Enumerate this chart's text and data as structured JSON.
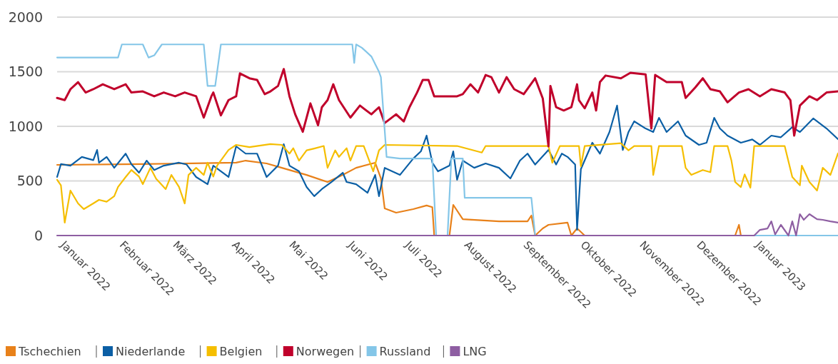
{
  "chart_data": {
    "type": "line",
    "ylim": [
      0,
      2000
    ],
    "yticks": [
      0,
      500,
      1000,
      1500,
      2000
    ],
    "grid": "y",
    "legend": "bottom",
    "xlim": [
      "2022-01-01",
      "2023-02-15"
    ],
    "xticks": [
      {
        "value": "2022-01-01",
        "label": "Januar 2022"
      },
      {
        "value": "2022-02-01",
        "label": "Februar 2022"
      },
      {
        "value": "2022-03-01",
        "label": "März 2022"
      },
      {
        "value": "2022-04-01",
        "label": "April 2022"
      },
      {
        "value": "2022-05-01",
        "label": "Mai 2022"
      },
      {
        "value": "2022-06-01",
        "label": "Juni 2022"
      },
      {
        "value": "2022-07-01",
        "label": "Juli 2022"
      },
      {
        "value": "2022-08-01",
        "label": "August 2022"
      },
      {
        "value": "2022-09-01",
        "label": "September 2022"
      },
      {
        "value": "2022-10-01",
        "label": "Oktober 2022"
      },
      {
        "value": "2022-11-01",
        "label": "November 2022"
      },
      {
        "value": "2022-12-01",
        "label": "Dezember 2022"
      },
      {
        "value": "2023-01-01",
        "label": "Januar 2023"
      }
    ],
    "series": [
      {
        "name": "Tschechien",
        "color": "#e8811a",
        "x": [
          "2022-01-01",
          "2022-02-15",
          "2022-04-05",
          "2022-04-10",
          "2022-04-21",
          "2022-04-29",
          "2022-05-12",
          "2022-05-23",
          "2022-05-31",
          "2022-06-07",
          "2022-06-17",
          "2022-06-20",
          "2022-06-22",
          "2022-06-28",
          "2022-07-07",
          "2022-07-14",
          "2022-07-17",
          "2022-07-18",
          "2022-07-26",
          "2022-07-28",
          "2022-08-02",
          "2022-08-21",
          "2022-09-05",
          "2022-09-07",
          "2022-09-09",
          "2022-09-13",
          "2022-09-16",
          "2022-09-26",
          "2022-09-28",
          "2022-10-01",
          "2022-10-05",
          "2022-12-23",
          "2022-12-25",
          "2022-12-26",
          "2023-02-15"
        ],
        "values": [
          647,
          655,
          667,
          686,
          660,
          620,
          555,
          490,
          555,
          620,
          667,
          523,
          248,
          209,
          242,
          275,
          260,
          0,
          0,
          281,
          150,
          130,
          130,
          183,
          0,
          65,
          98,
          118,
          0,
          65,
          0,
          0,
          98,
          0,
          0
        ]
      },
      {
        "name": "Niederlande",
        "color": "#0b5fa5",
        "x": [
          "2022-01-01",
          "2022-01-03",
          "2022-01-08",
          "2022-01-14",
          "2022-01-20",
          "2022-01-22",
          "2022-01-23",
          "2022-01-27",
          "2022-01-31",
          "2022-02-06",
          "2022-02-09",
          "2022-02-13",
          "2022-02-17",
          "2022-02-21",
          "2022-02-26",
          "2022-03-06",
          "2022-03-10",
          "2022-03-15",
          "2022-03-21",
          "2022-03-24",
          "2022-04-01",
          "2022-04-05",
          "2022-04-10",
          "2022-04-16",
          "2022-04-21",
          "2022-04-27",
          "2022-04-30",
          "2022-05-03",
          "2022-05-08",
          "2022-05-12",
          "2022-05-16",
          "2022-05-20",
          "2022-05-25",
          "2022-05-31",
          "2022-06-02",
          "2022-06-07",
          "2022-06-13",
          "2022-06-17",
          "2022-06-19",
          "2022-06-22",
          "2022-06-30",
          "2022-07-07",
          "2022-07-11",
          "2022-07-14",
          "2022-07-17",
          "2022-07-20",
          "2022-07-26",
          "2022-07-28",
          "2022-07-30",
          "2022-08-02",
          "2022-08-08",
          "2022-08-14",
          "2022-08-21",
          "2022-08-27",
          "2022-09-01",
          "2022-09-05",
          "2022-09-09",
          "2022-09-16",
          "2022-09-20",
          "2022-09-23",
          "2022-09-26",
          "2022-09-30",
          "2022-10-01",
          "2022-10-03",
          "2022-10-09",
          "2022-10-13",
          "2022-10-18",
          "2022-10-22",
          "2022-10-25",
          "2022-10-28",
          "2022-10-31",
          "2022-11-06",
          "2022-11-10",
          "2022-11-13",
          "2022-11-17",
          "2022-11-23",
          "2022-11-27",
          "2022-12-04",
          "2022-12-08",
          "2022-12-12",
          "2022-12-15",
          "2022-12-19",
          "2022-12-26",
          "2023-01-01",
          "2023-01-05",
          "2023-01-11",
          "2023-01-16",
          "2023-01-22",
          "2023-01-26",
          "2023-02-02",
          "2023-02-09",
          "2023-02-15"
        ],
        "values": [
          536,
          654,
          640,
          720,
          690,
          784,
          667,
          720,
          620,
          750,
          654,
          575,
          686,
          600,
          640,
          667,
          650,
          536,
          470,
          640,
          536,
          817,
          750,
          750,
          536,
          640,
          837,
          640,
          588,
          444,
          360,
          425,
          490,
          575,
          490,
          470,
          392,
          555,
          360,
          620,
          555,
          705,
          771,
          915,
          667,
          588,
          640,
          771,
          510,
          686,
          620,
          660,
          620,
          523,
          686,
          750,
          650,
          784,
          650,
          750,
          720,
          650,
          52,
          608,
          850,
          750,
          948,
          1190,
          784,
          948,
          1046,
          980,
          948,
          1078,
          948,
          1046,
          915,
          830,
          850,
          1078,
          980,
          915,
          850,
          880,
          830,
          915,
          900,
          993,
          948,
          1072,
          980,
          882
        ]
      },
      {
        "name": "Belgien",
        "color": "#f5be00",
        "x": [
          "2022-01-01",
          "2022-01-03",
          "2022-01-05",
          "2022-01-08",
          "2022-01-12",
          "2022-01-15",
          "2022-01-20",
          "2022-01-23",
          "2022-01-27",
          "2022-01-31",
          "2022-02-02",
          "2022-02-06",
          "2022-02-09",
          "2022-02-13",
          "2022-02-15",
          "2022-02-19",
          "2022-02-22",
          "2022-02-27",
          "2022-03-02",
          "2022-03-06",
          "2022-03-09",
          "2022-03-11",
          "2022-03-15",
          "2022-03-19",
          "2022-03-21",
          "2022-03-24",
          "2022-03-26",
          "2022-04-01",
          "2022-04-05",
          "2022-04-12",
          "2022-04-23",
          "2022-04-29",
          "2022-05-03",
          "2022-05-05",
          "2022-05-08",
          "2022-05-12",
          "2022-05-16",
          "2022-05-21",
          "2022-05-23",
          "2022-05-27",
          "2022-05-29",
          "2022-06-02",
          "2022-06-04",
          "2022-06-07",
          "2022-06-11",
          "2022-06-16",
          "2022-06-19",
          "2022-06-22",
          "2022-07-30",
          "2022-08-12",
          "2022-08-14",
          "2022-09-16",
          "2022-09-18",
          "2022-09-22",
          "2022-10-02",
          "2022-10-03",
          "2022-10-05",
          "2022-10-24",
          "2022-10-28",
          "2022-10-31",
          "2022-11-09",
          "2022-11-10",
          "2022-11-13",
          "2022-11-25",
          "2022-11-27",
          "2022-11-30",
          "2022-12-06",
          "2022-12-10",
          "2022-12-12",
          "2022-12-19",
          "2022-12-21",
          "2022-12-23",
          "2022-12-26",
          "2022-12-28",
          "2022-12-31",
          "2023-01-02",
          "2023-01-18",
          "2023-01-22",
          "2023-01-26",
          "2023-01-27",
          "2023-01-31",
          "2023-02-04",
          "2023-02-07",
          "2023-02-11",
          "2023-02-15"
        ],
        "values": [
          510,
          460,
          118,
          412,
          294,
          242,
          294,
          327,
          310,
          360,
          445,
          536,
          600,
          540,
          470,
          620,
          520,
          425,
          555,
          445,
          294,
          555,
          620,
          555,
          667,
          540,
          640,
          784,
          830,
          810,
          837,
          830,
          750,
          800,
          686,
          780,
          797,
          820,
          620,
          780,
          720,
          800,
          686,
          820,
          820,
          588,
          780,
          830,
          820,
          760,
          820,
          820,
          667,
          820,
          820,
          634,
          820,
          845,
          780,
          820,
          820,
          555,
          820,
          820,
          620,
          555,
          600,
          580,
          820,
          820,
          690,
          490,
          444,
          560,
          438,
          820,
          820,
          536,
          460,
          640,
          490,
          412,
          620,
          555,
          752
        ]
      },
      {
        "name": "Norwegen",
        "color": "#c0002b",
        "x": [
          "2022-01-01",
          "2022-01-05",
          "2022-01-08",
          "2022-01-12",
          "2022-01-16",
          "2022-01-20",
          "2022-01-25",
          "2022-01-31",
          "2022-02-06",
          "2022-02-09",
          "2022-02-15",
          "2022-02-21",
          "2022-02-26",
          "2022-03-04",
          "2022-03-09",
          "2022-03-15",
          "2022-03-19",
          "2022-03-23",
          "2022-03-24",
          "2022-03-28",
          "2022-04-01",
          "2022-04-05",
          "2022-04-07",
          "2022-04-12",
          "2022-04-16",
          "2022-04-20",
          "2022-04-23",
          "2022-04-27",
          "2022-04-30",
          "2022-05-03",
          "2022-05-06",
          "2022-05-10",
          "2022-05-14",
          "2022-05-18",
          "2022-05-20",
          "2022-05-23",
          "2022-05-26",
          "2022-05-29",
          "2022-06-04",
          "2022-06-09",
          "2022-06-15",
          "2022-06-19",
          "2022-06-22",
          "2022-06-28",
          "2022-07-02",
          "2022-07-05",
          "2022-07-09",
          "2022-07-12",
          "2022-07-15",
          "2022-07-18",
          "2022-07-24",
          "2022-07-30",
          "2022-08-02",
          "2022-08-06",
          "2022-08-10",
          "2022-08-14",
          "2022-08-17",
          "2022-08-21",
          "2022-08-25",
          "2022-08-29",
          "2022-09-03",
          "2022-09-09",
          "2022-09-13",
          "2022-09-16",
          "2022-09-17",
          "2022-09-20",
          "2022-09-24",
          "2022-09-28",
          "2022-10-01",
          "2022-10-02",
          "2022-10-05",
          "2022-10-09",
          "2022-10-11",
          "2022-10-13",
          "2022-10-16",
          "2022-10-24",
          "2022-10-29",
          "2022-11-06",
          "2022-11-09",
          "2022-11-11",
          "2022-11-17",
          "2022-11-25",
          "2022-11-27",
          "2022-12-02",
          "2022-12-06",
          "2022-12-10",
          "2022-12-15",
          "2022-12-19",
          "2022-12-25",
          "2022-12-30",
          "2023-01-05",
          "2023-01-11",
          "2023-01-18",
          "2023-01-21",
          "2023-01-23",
          "2023-01-26",
          "2023-01-31",
          "2023-02-04",
          "2023-02-09",
          "2023-02-15"
        ],
        "values": [
          1260,
          1240,
          1340,
          1405,
          1310,
          1340,
          1385,
          1340,
          1385,
          1310,
          1320,
          1275,
          1310,
          1275,
          1310,
          1275,
          1080,
          1275,
          1310,
          1100,
          1240,
          1275,
          1485,
          1440,
          1425,
          1295,
          1320,
          1370,
          1525,
          1275,
          1110,
          950,
          1210,
          1010,
          1175,
          1240,
          1385,
          1240,
          1080,
          1190,
          1110,
          1175,
          1030,
          1110,
          1045,
          1175,
          1310,
          1425,
          1425,
          1275,
          1275,
          1275,
          1295,
          1385,
          1310,
          1470,
          1450,
          1310,
          1450,
          1340,
          1295,
          1440,
          1255,
          817,
          1370,
          1175,
          1145,
          1175,
          1385,
          1240,
          1165,
          1310,
          1145,
          1405,
          1465,
          1440,
          1490,
          1475,
          980,
          1470,
          1405,
          1405,
          1260,
          1355,
          1440,
          1340,
          1320,
          1220,
          1310,
          1340,
          1275,
          1340,
          1310,
          1240,
          915,
          1190,
          1275,
          1240,
          1310,
          1320
        ]
      },
      {
        "name": "Russland",
        "color": "#84c6e8",
        "x": [
          "2022-01-01",
          "2022-02-02",
          "2022-02-04",
          "2022-02-15",
          "2022-02-18",
          "2022-02-21",
          "2022-02-25",
          "2022-03-19",
          "2022-03-21",
          "2022-03-25",
          "2022-03-28",
          "2022-06-05",
          "2022-06-06",
          "2022-06-07",
          "2022-06-10",
          "2022-06-15",
          "2022-06-19",
          "2022-06-20",
          "2022-06-23",
          "2022-06-30",
          "2022-07-17",
          "2022-07-19",
          "2022-07-25",
          "2022-07-27",
          "2022-08-02",
          "2022-08-03",
          "2022-09-07",
          "2022-09-09",
          "2023-02-15"
        ],
        "values": [
          1630,
          1630,
          1750,
          1750,
          1630,
          1650,
          1750,
          1750,
          1370,
          1370,
          1750,
          1750,
          1580,
          1750,
          1720,
          1640,
          1500,
          1450,
          720,
          705,
          705,
          0,
          0,
          705,
          705,
          345,
          345,
          0,
          0
        ]
      },
      {
        "name": "LNG",
        "color": "#8e5ea2",
        "x": [
          "2022-01-01",
          "2023-01-02",
          "2023-01-05",
          "2023-01-09",
          "2023-01-11",
          "2023-01-13",
          "2023-01-16",
          "2023-01-20",
          "2023-01-22",
          "2023-01-24",
          "2023-01-26",
          "2023-01-28",
          "2023-01-31",
          "2023-02-04",
          "2023-02-07",
          "2023-02-11",
          "2023-02-15"
        ],
        "values": [
          0,
          0,
          52,
          65,
          130,
          10,
          98,
          0,
          130,
          0,
          196,
          144,
          196,
          150,
          144,
          130,
          118
        ]
      }
    ]
  }
}
